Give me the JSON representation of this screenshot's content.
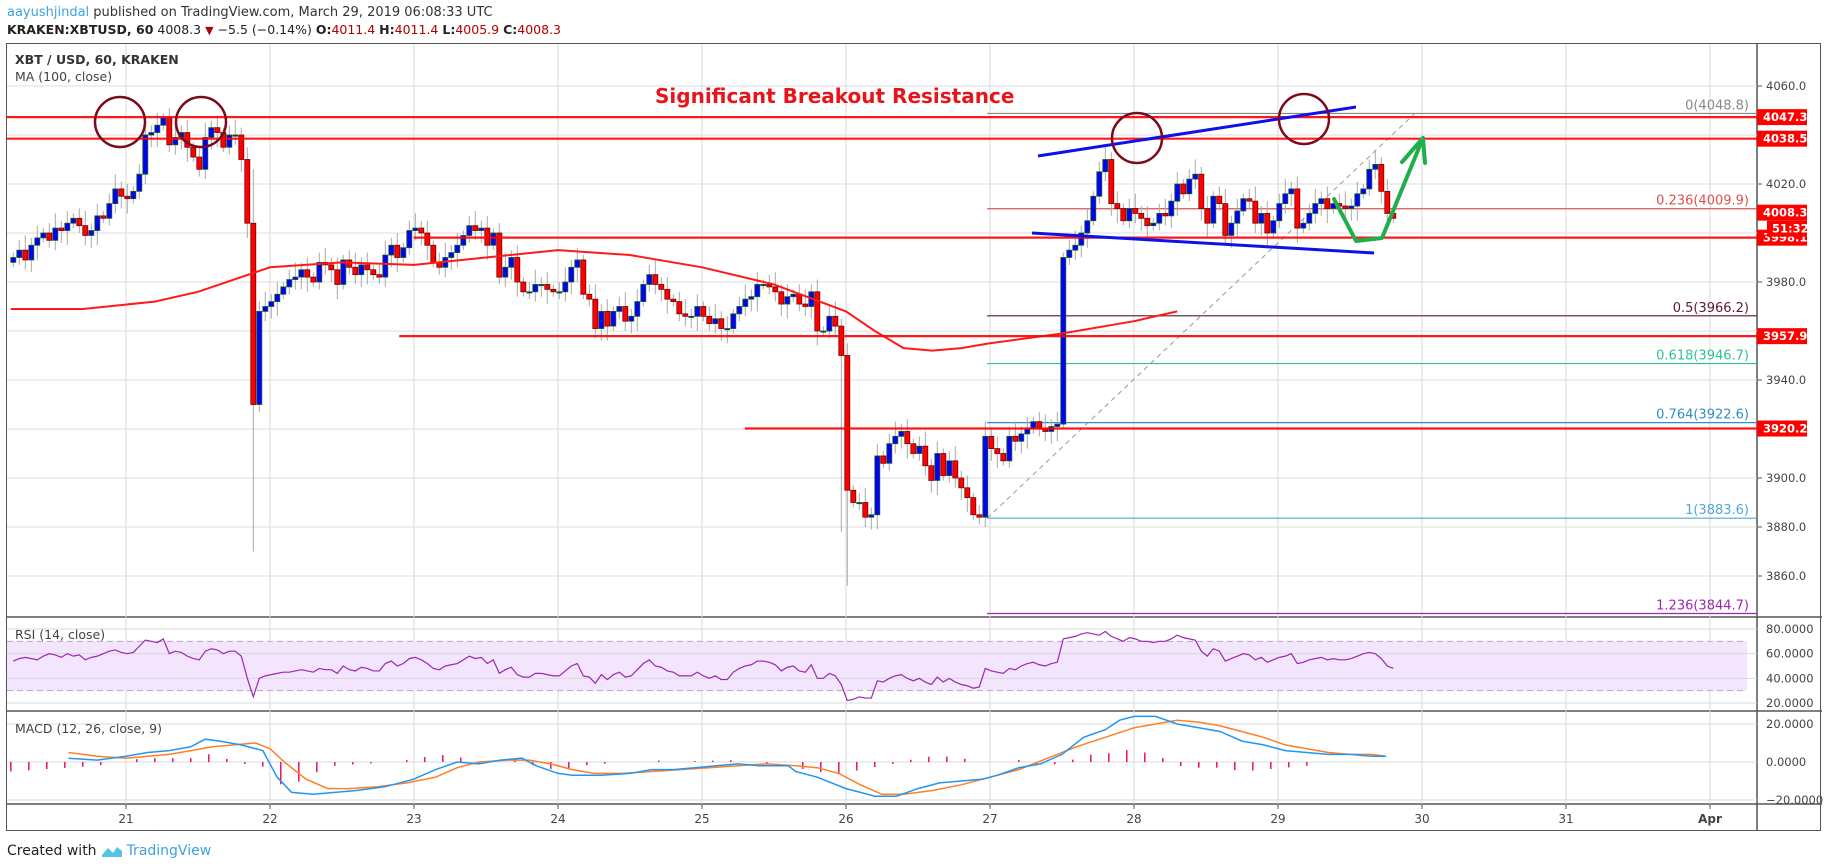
{
  "header": {
    "author": "aayushjindal",
    "published_text": " published on TradingView.com, March 29, 2019 06:08:33 UTC",
    "symbol": "KRAKEN:XBTUSD, 60",
    "last": "4008.3",
    "change": "−5.5 (−0.14%)",
    "o_label": "O:",
    "o": "4011.4",
    "h_label": "H:",
    "h": "4011.4",
    "l_label": "L:",
    "l": "4005.9",
    "c_label": "C:",
    "c": "4008.3"
  },
  "pane_labels": {
    "main": "XBT / USD, 60, KRAKEN",
    "ma": "MA (100, close)",
    "rsi": "RSI (14, close)",
    "macd": "MACD (12, 26, close, 9)"
  },
  "annotation": "Significant Breakout Resistance",
  "footer": {
    "created_with": "Created with",
    "brand": "TradingView"
  },
  "colors": {
    "up": "#0000ff",
    "down": "#ff0000",
    "wick": "#a8a8a8",
    "border": "#1a5d1a",
    "ma": "#ff1a1a",
    "hline": "#ff0000",
    "circle": "#7b0a1a",
    "trend": "#1010e8",
    "arrow": "#1fae4a",
    "rsi": "#9c27b0",
    "rsi_band": "#f3e5fd",
    "macd": "#2196f3",
    "signal": "#ff7f27",
    "hist": "#e8106e"
  },
  "chart_data": {
    "type": "candlestick",
    "title": "XBT / USD, 60, KRAKEN",
    "x_ticks": [
      "21",
      "22",
      "23",
      "24",
      "25",
      "26",
      "27",
      "28",
      "29",
      "30",
      "31",
      "Apr"
    ],
    "y_ticks": [
      4060.0,
      4040.0,
      4020.0,
      4000.0,
      3980.0,
      3960.0,
      3940.0,
      3920.0,
      3900.0,
      3880.0,
      3860.0
    ],
    "y_tick_labels": [
      "4060.0",
      "4020.0",
      "3980.0",
      "3940.0",
      "3900.0",
      "3880.0",
      "3860.0"
    ],
    "ylim": [
      3838,
      4070
    ],
    "price_labels": [
      {
        "value": 4047.3,
        "label": "4047.3"
      },
      {
        "value": 4038.5,
        "label": "4038.5"
      },
      {
        "value": 4008.3,
        "label": "4008.3"
      },
      {
        "value": 3998.1,
        "label": "3998.1"
      },
      {
        "value": 3957.9,
        "label": "3957.9"
      },
      {
        "value": 3920.2,
        "label": "3920.2"
      }
    ],
    "countdown": "51:32",
    "horizontal_lines": [
      {
        "value": 4047.3,
        "x_start": 0
      },
      {
        "value": 4038.5,
        "x_start": 0
      },
      {
        "value": 3998.1,
        "x_start": 2.9
      },
      {
        "value": 3957.9,
        "x_start": 2.8
      },
      {
        "value": 3920.2,
        "x_start": 5.2
      }
    ],
    "fib_levels": [
      {
        "ratio": "0",
        "value": 4048.8,
        "label": "0(4048.8)",
        "color": "#888888"
      },
      {
        "ratio": "0.236",
        "value": 4009.9,
        "label": "0.236(4009.9)",
        "color": "#d9534f"
      },
      {
        "ratio": "0.5",
        "value": 3966.2,
        "label": "0.5(3966.2)",
        "color": "#5b1a2e"
      },
      {
        "ratio": "0.618",
        "value": 3946.7,
        "label": "0.618(3946.7)",
        "color": "#2ec48c"
      },
      {
        "ratio": "0.764",
        "value": 3922.6,
        "label": "0.764(3922.6)",
        "color": "#2d8fc4"
      },
      {
        "ratio": "1",
        "value": 3883.6,
        "label": "1(3883.6)",
        "color": "#4fa8d8"
      },
      {
        "ratio": "1.236",
        "value": 3844.7,
        "label": "1.236(3844.7)",
        "color": "#9c27b0"
      }
    ],
    "fib_start_day": 5.98,
    "closes_start_day": -0.8,
    "closes_hourly": [
      3990,
      3993,
      3989,
      3995,
      3998,
      4000,
      3997,
      4002,
      4001,
      4004,
      4006,
      4003,
      3999,
      4001,
      4007,
      4006,
      4012,
      4018,
      4015,
      4014,
      4017,
      4024,
      4040,
      4041,
      4044,
      4047,
      4036,
      4039,
      4041,
      4035,
      4031,
      4026,
      4039,
      4043,
      4041,
      4035,
      4040,
      4040,
      4030,
      4004,
      3930,
      3968,
      3970,
      3972,
      3975,
      3978,
      3981,
      3982,
      3985,
      3982,
      3980,
      3988,
      3987,
      3985,
      3979,
      3989,
      3986,
      3983,
      3987,
      3985,
      3983,
      3982,
      3991,
      3995,
      3990,
      3994,
      4001,
      4002,
      4000,
      3995,
      3988,
      3986,
      3990,
      3992,
      3995,
      3999,
      4003,
      4001,
      4002,
      3995,
      4000,
      3982,
      3986,
      3990,
      3980,
      3976,
      3976,
      3979,
      3979,
      3977,
      3976,
      3976,
      3980,
      3986,
      3989,
      3975,
      3973,
      3961,
      3968,
      3962,
      3968,
      3970,
      3964,
      3966,
      3972,
      3979,
      3983,
      3979,
      3977,
      3973,
      3972,
      3967,
      3966,
      3966,
      3970,
      3966,
      3963,
      3965,
      3961,
      3961,
      3967,
      3970,
      3973,
      3974,
      3979,
      3979,
      3978,
      3976,
      3971,
      3974,
      3975,
      3971,
      3970,
      3976,
      3960,
      3960,
      3966,
      3962,
      3950,
      3895,
      3890,
      3890,
      3884,
      3885,
      3909,
      3906,
      3914,
      3917,
      3919,
      3914,
      3910,
      3913,
      3905,
      3899,
      3910,
      3901,
      3907,
      3900,
      3896,
      3892,
      3885,
      3884,
      3917,
      3912,
      3910,
      3907,
      3917,
      3915,
      3918,
      3920,
      3923,
      3920,
      3919,
      3921,
      3922,
      3990,
      3993,
      3995,
      4000,
      4005,
      4015,
      4025,
      4030,
      4012,
      4010,
      4005,
      4010,
      4008,
      4006,
      4003,
      4004,
      4008,
      4007,
      4013,
      4020,
      4016,
      4022,
      4024,
      4010,
      4004,
      4015,
      4012,
      3999,
      4004,
      4009,
      4014,
      4013,
      4004,
      4008,
      4000,
      4005,
      4012,
      4016,
      4018,
      4002,
      4004,
      4008,
      4012,
      4014,
      4010,
      4012,
      4011,
      4010,
      4011,
      4016,
      4018,
      4026,
      4028,
      4017,
      4008,
      4006
    ],
    "ma100_points": [
      [
        -0.8,
        3969
      ],
      [
        -0.3,
        3969
      ],
      [
        0.2,
        3972
      ],
      [
        0.5,
        3976
      ],
      [
        1.0,
        3986
      ],
      [
        1.5,
        3988
      ],
      [
        2.0,
        3987
      ],
      [
        2.5,
        3990
      ],
      [
        3.0,
        3993
      ],
      [
        3.5,
        3991
      ],
      [
        4.0,
        3986
      ],
      [
        4.5,
        3979
      ],
      [
        5.0,
        3968
      ],
      [
        5.2,
        3960
      ],
      [
        5.4,
        3953
      ],
      [
        5.6,
        3952
      ],
      [
        5.8,
        3953
      ],
      [
        6.0,
        3955
      ],
      [
        6.5,
        3959
      ],
      [
        7.0,
        3964
      ],
      [
        7.3,
        3968
      ]
    ],
    "rsi": {
      "ylim": [
        20,
        80
      ],
      "bands": [
        70,
        30
      ],
      "ticks": [
        "80.0000",
        "60.0000",
        "40.0000",
        "20.0000"
      ],
      "values": [
        54,
        56,
        57,
        56,
        55,
        58,
        60,
        59,
        57,
        60,
        58,
        59,
        55,
        57,
        58,
        60,
        62,
        63,
        61,
        60,
        61,
        66,
        71,
        70,
        69,
        72,
        60,
        62,
        61,
        58,
        56,
        55,
        62,
        64,
        63,
        60,
        62,
        62,
        58,
        40,
        25,
        40,
        42,
        43,
        44,
        45,
        45,
        46,
        47,
        46,
        45,
        48,
        47,
        47,
        44,
        50,
        47,
        46,
        49,
        48,
        46,
        46,
        52,
        54,
        50,
        52,
        56,
        57,
        55,
        52,
        48,
        47,
        50,
        51,
        52,
        55,
        58,
        56,
        57,
        52,
        55,
        44,
        47,
        49,
        43,
        41,
        41,
        44,
        44,
        43,
        42,
        42,
        46,
        50,
        52,
        42,
        41,
        36,
        43,
        39,
        43,
        45,
        41,
        42,
        47,
        52,
        55,
        50,
        49,
        46,
        45,
        42,
        42,
        42,
        45,
        42,
        40,
        42,
        39,
        39,
        45,
        48,
        50,
        51,
        54,
        54,
        53,
        51,
        46,
        49,
        50,
        46,
        45,
        51,
        40,
        40,
        44,
        42,
        35,
        22,
        23,
        25,
        24,
        24,
        38,
        37,
        40,
        42,
        43,
        40,
        38,
        40,
        37,
        35,
        41,
        37,
        40,
        37,
        35,
        34,
        32,
        33,
        48,
        46,
        45,
        44,
        48,
        47,
        50,
        52,
        53,
        51,
        50,
        52,
        53,
        72,
        73,
        74,
        76,
        77,
        76,
        75,
        78,
        74,
        72,
        70,
        73,
        72,
        70,
        70,
        69,
        70,
        70,
        72,
        75,
        73,
        72,
        71,
        62,
        58,
        64,
        62,
        54,
        56,
        58,
        60,
        59,
        55,
        57,
        53,
        55,
        57,
        58,
        60,
        52,
        53,
        55,
        56,
        57,
        55,
        56,
        55,
        55,
        56,
        58,
        60,
        61,
        60,
        56,
        50,
        48
      ]
    },
    "macd": {
      "ylim": [
        -22,
        22
      ],
      "ticks": [
        "20.0000",
        "0.0000",
        "−20.0000"
      ],
      "points_macd": [
        [
          -0.8,
          2
        ],
        [
          -0.4,
          1
        ],
        [
          0.0,
          3
        ],
        [
          0.3,
          5
        ],
        [
          0.6,
          6
        ],
        [
          0.9,
          8
        ],
        [
          1.1,
          12
        ],
        [
          1.3,
          11
        ],
        [
          1.6,
          9
        ],
        [
          1.9,
          6
        ],
        [
          2.1,
          -8
        ],
        [
          2.3,
          -16
        ],
        [
          2.6,
          -17
        ],
        [
          2.9,
          -16
        ],
        [
          3.2,
          -15
        ],
        [
          3.6,
          -13
        ],
        [
          4.0,
          -9
        ],
        [
          4.3,
          -4
        ],
        [
          4.6,
          0
        ],
        [
          4.9,
          -1
        ],
        [
          5.2,
          1
        ],
        [
          5.5,
          2
        ],
        [
          5.7,
          -2
        ],
        [
          6.0,
          -6
        ],
        [
          6.2,
          -7
        ],
        [
          6.6,
          -7
        ],
        [
          7.0,
          -6
        ],
        [
          7.3,
          -4
        ],
        [
          7.6,
          -4
        ],
        [
          7.9,
          -3
        ],
        [
          8.2,
          -2
        ],
        [
          8.5,
          -1
        ],
        [
          8.8,
          -2
        ],
        [
          9.2,
          -2
        ],
        [
          9.3,
          -5
        ],
        [
          9.6,
          -8
        ],
        [
          10.0,
          -14
        ],
        [
          10.2,
          -16
        ],
        [
          10.4,
          -18
        ],
        [
          10.7,
          -18
        ],
        [
          11.0,
          -14
        ],
        [
          11.3,
          -11
        ],
        [
          11.6,
          -10
        ],
        [
          11.9,
          -9
        ],
        [
          12.1,
          -7
        ],
        [
          12.4,
          -3
        ],
        [
          12.7,
          -1
        ],
        [
          13.0,
          4
        ],
        [
          13.3,
          13
        ],
        [
          13.6,
          17
        ],
        [
          13.8,
          22
        ],
        [
          14.0,
          24
        ],
        [
          14.3,
          24
        ],
        [
          14.6,
          20
        ],
        [
          14.9,
          18
        ],
        [
          15.2,
          16
        ],
        [
          15.5,
          11
        ],
        [
          15.8,
          9
        ],
        [
          16.1,
          6
        ],
        [
          16.4,
          5
        ],
        [
          16.7,
          4
        ],
        [
          17.0,
          4
        ],
        [
          17.3,
          3
        ],
        [
          17.5,
          3
        ]
      ],
      "points_signal": [
        [
          -0.8,
          5
        ],
        [
          -0.4,
          3
        ],
        [
          0.0,
          2
        ],
        [
          0.3,
          3
        ],
        [
          0.6,
          4
        ],
        [
          0.9,
          6
        ],
        [
          1.2,
          8
        ],
        [
          1.5,
          9
        ],
        [
          1.8,
          10
        ],
        [
          2.0,
          7
        ],
        [
          2.2,
          0
        ],
        [
          2.5,
          -9
        ],
        [
          2.8,
          -14
        ],
        [
          3.1,
          -14
        ],
        [
          3.5,
          -13
        ],
        [
          3.9,
          -11
        ],
        [
          4.3,
          -8
        ],
        [
          4.6,
          -3
        ],
        [
          4.9,
          0
        ],
        [
          5.3,
          1
        ],
        [
          5.6,
          1
        ],
        [
          5.9,
          -1
        ],
        [
          6.2,
          -4
        ],
        [
          6.5,
          -6
        ],
        [
          6.9,
          -6
        ],
        [
          7.3,
          -5
        ],
        [
          7.7,
          -4
        ],
        [
          8.1,
          -3
        ],
        [
          8.5,
          -2
        ],
        [
          8.9,
          -1
        ],
        [
          9.3,
          -2
        ],
        [
          9.6,
          -3
        ],
        [
          9.9,
          -6
        ],
        [
          10.2,
          -12
        ],
        [
          10.5,
          -17
        ],
        [
          10.8,
          -17
        ],
        [
          11.2,
          -15
        ],
        [
          11.6,
          -12
        ],
        [
          12.0,
          -8
        ],
        [
          12.4,
          -4
        ],
        [
          12.8,
          2
        ],
        [
          13.2,
          8
        ],
        [
          13.6,
          13
        ],
        [
          14.0,
          18
        ],
        [
          14.3,
          20
        ],
        [
          14.6,
          22
        ],
        [
          14.9,
          21
        ],
        [
          15.2,
          19
        ],
        [
          15.5,
          16
        ],
        [
          15.8,
          13
        ],
        [
          16.1,
          9
        ],
        [
          16.4,
          7
        ],
        [
          16.7,
          5
        ],
        [
          17.0,
          4
        ],
        [
          17.3,
          4
        ],
        [
          17.5,
          3
        ]
      ]
    }
  }
}
